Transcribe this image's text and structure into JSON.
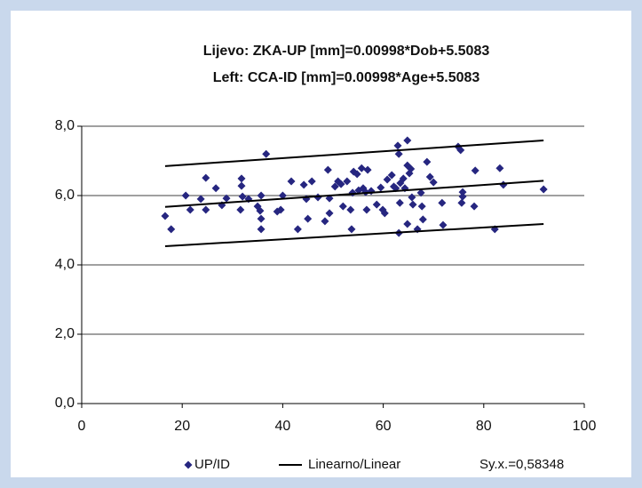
{
  "chart_data": {
    "type": "scatter",
    "title": "Lijevo: ZKA-UP [mm]=0.00998*Dob+5.5083",
    "subtitle": "Left: CCA-ID [mm]=0.00998*Age+5.5083",
    "xlim": [
      0,
      100
    ],
    "xticks": [
      0,
      20,
      40,
      60,
      80,
      100
    ],
    "ylim": [
      0,
      8
    ],
    "yticks": [
      {
        "value": 0,
        "label": "0,0"
      },
      {
        "value": 2,
        "label": "2,0"
      },
      {
        "value": 4,
        "label": "4,0"
      },
      {
        "value": 6,
        "label": "6,0"
      },
      {
        "value": 8,
        "label": "8,0"
      }
    ],
    "grid": true,
    "series": [
      {
        "name": "UP/ID",
        "color": "#262680",
        "x": [
          16.6,
          17.8,
          20.7,
          21.6,
          23.7,
          24.7,
          24.7,
          26.7,
          27.9,
          28.8,
          32.0,
          31.8,
          31.8,
          31.6,
          33.2,
          35.0,
          35.5,
          35.7,
          35.7,
          35.7,
          36.7,
          38.9,
          39.6,
          40.0,
          41.7,
          43.0,
          44.2,
          44.7,
          45.0,
          45.8,
          47.0,
          48.4,
          49.0,
          49.3,
          49.3,
          50.4,
          51.0,
          51.6,
          52.0,
          52.8,
          53.5,
          53.7,
          53.9,
          54.1,
          54.8,
          55.1,
          55.7,
          56.0,
          56.5,
          56.9,
          57.6,
          56.7,
          58.7,
          59.5,
          59.9,
          60.3,
          60.8,
          61.7,
          62.1,
          62.5,
          62.9,
          63.1,
          63.3,
          63.1,
          63.4,
          64.0,
          64.3,
          64.8,
          64.8,
          64.8,
          65.2,
          65.7,
          65.9,
          65.5,
          66.8,
          67.5,
          67.7,
          67.9,
          68.7,
          69.3,
          70.0,
          71.7,
          71.9,
          74.9,
          75.4,
          75.8,
          75.8,
          75.6,
          78.3,
          78.1,
          82.2,
          83.2,
          83.9,
          91.9
        ],
        "values": [
          5.41,
          5.03,
          6.0,
          5.59,
          5.9,
          6.51,
          5.59,
          6.21,
          5.72,
          5.92,
          5.97,
          6.49,
          6.28,
          5.59,
          5.9,
          5.69,
          5.56,
          6.0,
          5.33,
          5.03,
          7.2,
          5.54,
          5.59,
          6.0,
          6.41,
          5.03,
          6.31,
          5.9,
          5.33,
          6.41,
          5.95,
          5.26,
          6.74,
          5.49,
          5.92,
          6.26,
          6.41,
          6.33,
          5.69,
          6.41,
          5.59,
          5.03,
          6.08,
          6.69,
          6.62,
          6.15,
          6.79,
          6.21,
          6.1,
          6.74,
          6.13,
          5.59,
          5.74,
          6.23,
          5.59,
          5.49,
          6.46,
          6.59,
          6.26,
          6.21,
          7.44,
          7.2,
          5.79,
          4.92,
          6.36,
          6.49,
          6.21,
          7.59,
          6.87,
          5.18,
          6.64,
          5.95,
          5.74,
          6.77,
          5.03,
          6.08,
          5.69,
          5.31,
          6.97,
          6.54,
          6.38,
          5.79,
          5.15,
          7.41,
          7.31,
          6.1,
          5.97,
          5.79,
          6.72,
          5.69,
          5.03,
          6.79,
          6.31,
          6.18
        ]
      },
      {
        "name": "Linearno/Linear",
        "color": "#000000",
        "x": [
          16.6,
          91.9
        ],
        "values": [
          5.674,
          6.425
        ]
      }
    ],
    "bands": [
      {
        "color": "#000000",
        "x": [
          16.6,
          91.9
        ],
        "values": [
          6.85,
          7.59
        ]
      },
      {
        "color": "#000000",
        "x": [
          16.6,
          91.9
        ],
        "values": [
          4.54,
          5.18
        ]
      }
    ],
    "annotation": "Sy.x.=0,58348"
  }
}
